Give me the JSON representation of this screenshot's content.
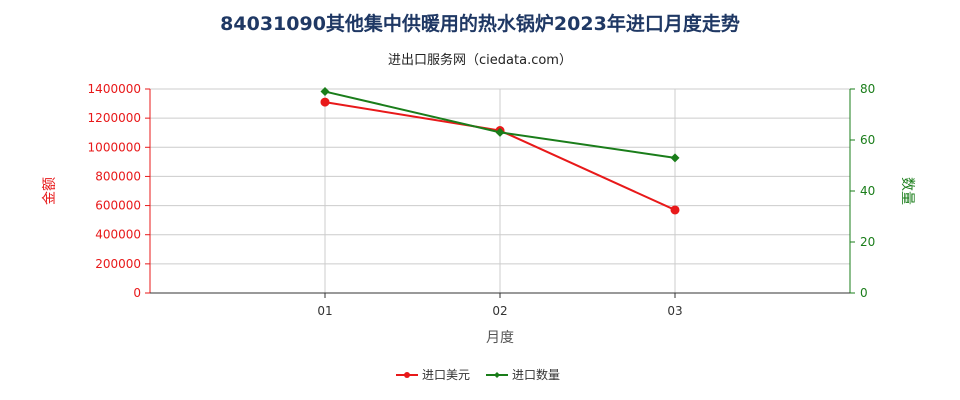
{
  "chart_data": {
    "type": "line",
    "title": "84031090其他集中供暖用的热水锅炉2023年进口月度走势",
    "subtitle": "进出口服务网（ciedata.com）",
    "xlabel": "月度",
    "ylabel_left": "金额",
    "ylabel_right": "数量",
    "categories": [
      "01",
      "02",
      "03"
    ],
    "y_left": {
      "lim": [
        0,
        1400000
      ],
      "ticks": [
        0,
        200000,
        400000,
        600000,
        800000,
        1000000,
        1200000,
        1400000
      ]
    },
    "y_right": {
      "lim": [
        0,
        80
      ],
      "ticks": [
        0,
        20,
        40,
        60,
        80
      ]
    },
    "grid": true,
    "legend_position": "bottom",
    "series": [
      {
        "name": "进口美元",
        "axis": "left",
        "color": "#e8191a",
        "marker": "circle",
        "values": [
          1310000,
          1115000,
          570000
        ]
      },
      {
        "name": "进口数量",
        "axis": "right",
        "color": "#1a7d1a",
        "marker": "diamond",
        "values": [
          79,
          63,
          53
        ]
      }
    ],
    "colors": {
      "left_axis": "#e8191a",
      "right_axis": "#1a7d1a",
      "grid": "#cccccc",
      "title": "#1f3864"
    }
  }
}
